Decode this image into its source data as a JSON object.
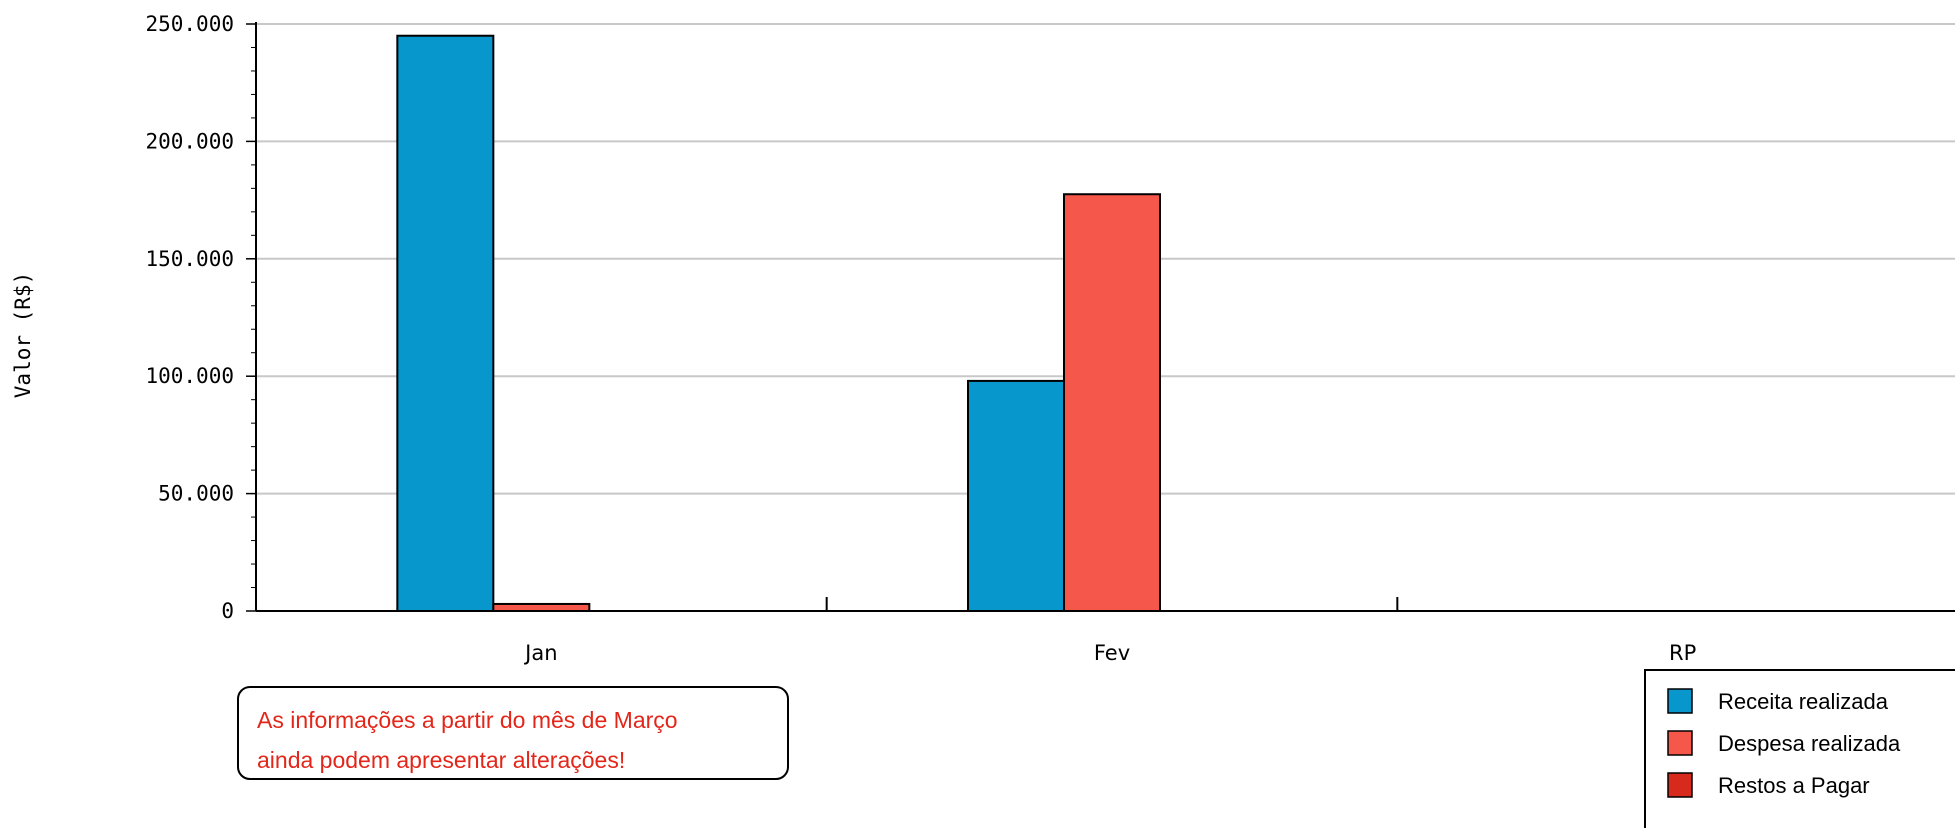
{
  "chart_data": {
    "type": "bar",
    "categories": [
      "Jan",
      "Fev",
      "RP"
    ],
    "series": [
      {
        "name": "Receita realizada",
        "color": "#0797cc",
        "values": [
          245000,
          98000,
          0
        ]
      },
      {
        "name": "Despesa realizada",
        "color": "#f5574a",
        "values": [
          3000,
          177500,
          0
        ]
      },
      {
        "name": "Restos a Pagar",
        "color": "#d8291d",
        "values": [
          0,
          0,
          0
        ]
      }
    ],
    "ylabel": "Valor (R$)",
    "xlabel": "",
    "title": "",
    "ylim": [
      0,
      250000
    ],
    "yticks": [
      0,
      50000,
      100000,
      150000,
      200000,
      250000
    ],
    "ytick_labels": [
      "0",
      "50.000",
      "100.000",
      "150.000",
      "200.000",
      "250.000"
    ],
    "grid": true,
    "legend_position": "bottom-right"
  },
  "note": {
    "lines": [
      "As informações a partir do mês de Março",
      "ainda podem apresentar alterações!"
    ],
    "color": "#e3261a"
  }
}
